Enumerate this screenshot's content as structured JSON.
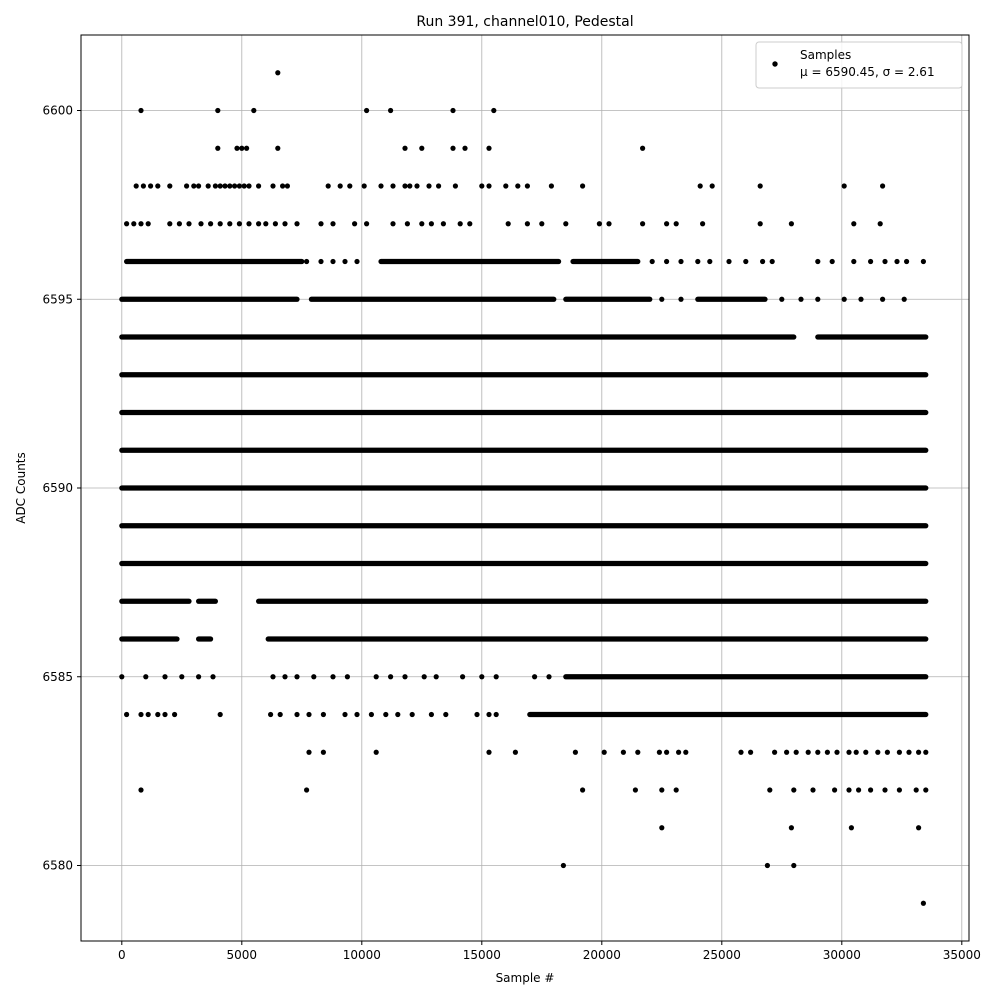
{
  "chart_data": {
    "type": "scatter",
    "title": "Run 391, channel010, Pedestal",
    "xlabel": "Sample #",
    "ylabel": "ADC Counts",
    "xlim": [
      -1700,
      35300
    ],
    "ylim": [
      6578,
      6602
    ],
    "xticks": [
      0,
      5000,
      10000,
      15000,
      20000,
      25000,
      30000,
      35000
    ],
    "xtick_labels": [
      "0",
      "5000",
      "10000",
      "15000",
      "20000",
      "25000",
      "30000",
      "35000"
    ],
    "yticks": [
      6580,
      6585,
      6590,
      6595,
      6600
    ],
    "ytick_labels": [
      "6580",
      "6585",
      "6590",
      "6595",
      "6600"
    ],
    "grid": true,
    "legend": {
      "placement": "top-right",
      "entries": [
        {
          "marker": "black-dot",
          "line1": "Samples",
          "line2": "μ = 6590.45, σ = 2.61"
        }
      ]
    },
    "series": [
      {
        "name": "Samples",
        "color": "#000000",
        "dense_levels": [
          {
            "y": 6586,
            "ranges": [
              [
                0,
                2300
              ],
              [
                3200,
                3700
              ],
              [
                6100,
                33500
              ]
            ]
          },
          {
            "y": 6587,
            "ranges": [
              [
                0,
                2800
              ],
              [
                3200,
                3900
              ],
              [
                5700,
                33500
              ]
            ]
          },
          {
            "y": 6588,
            "ranges": [
              [
                0,
                33500
              ]
            ]
          },
          {
            "y": 6589,
            "ranges": [
              [
                0,
                33500
              ]
            ]
          },
          {
            "y": 6590,
            "ranges": [
              [
                0,
                33500
              ]
            ]
          },
          {
            "y": 6591,
            "ranges": [
              [
                0,
                33500
              ]
            ]
          },
          {
            "y": 6592,
            "ranges": [
              [
                0,
                33500
              ]
            ]
          },
          {
            "y": 6593,
            "ranges": [
              [
                0,
                33500
              ]
            ]
          },
          {
            "y": 6594,
            "ranges": [
              [
                0,
                28000
              ],
              [
                29000,
                33500
              ]
            ]
          },
          {
            "y": 6595,
            "ranges": [
              [
                0,
                7300
              ],
              [
                7900,
                18000
              ],
              [
                18500,
                22000
              ],
              [
                24000,
                26800
              ]
            ]
          },
          {
            "y": 6596,
            "ranges": [
              [
                200,
                7500
              ],
              [
                10800,
                18200
              ],
              [
                18800,
                21500
              ]
            ]
          },
          {
            "y": 6584,
            "ranges": [
              [
                17000,
                33500
              ]
            ]
          },
          {
            "y": 6585,
            "ranges": [
              [
                18500,
                33500
              ]
            ]
          }
        ],
        "points": [
          [
            6500,
            6601
          ],
          [
            800,
            6600
          ],
          [
            4000,
            6600
          ],
          [
            5500,
            6600
          ],
          [
            10200,
            6600
          ],
          [
            11200,
            6600
          ],
          [
            13800,
            6600
          ],
          [
            15500,
            6600
          ],
          [
            4000,
            6599
          ],
          [
            4800,
            6599
          ],
          [
            5000,
            6599
          ],
          [
            5200,
            6599
          ],
          [
            6500,
            6599
          ],
          [
            11800,
            6599
          ],
          [
            12500,
            6599
          ],
          [
            13800,
            6599
          ],
          [
            14300,
            6599
          ],
          [
            15300,
            6599
          ],
          [
            21700,
            6599
          ],
          [
            600,
            6598
          ],
          [
            900,
            6598
          ],
          [
            1200,
            6598
          ],
          [
            1500,
            6598
          ],
          [
            2000,
            6598
          ],
          [
            2700,
            6598
          ],
          [
            3000,
            6598
          ],
          [
            3200,
            6598
          ],
          [
            3600,
            6598
          ],
          [
            3900,
            6598
          ],
          [
            4100,
            6598
          ],
          [
            4300,
            6598
          ],
          [
            4500,
            6598
          ],
          [
            4700,
            6598
          ],
          [
            4900,
            6598
          ],
          [
            5100,
            6598
          ],
          [
            5300,
            6598
          ],
          [
            5700,
            6598
          ],
          [
            6300,
            6598
          ],
          [
            6700,
            6598
          ],
          [
            6900,
            6598
          ],
          [
            8600,
            6598
          ],
          [
            9100,
            6598
          ],
          [
            9500,
            6598
          ],
          [
            10100,
            6598
          ],
          [
            10800,
            6598
          ],
          [
            11300,
            6598
          ],
          [
            11800,
            6598
          ],
          [
            12000,
            6598
          ],
          [
            12300,
            6598
          ],
          [
            12800,
            6598
          ],
          [
            13200,
            6598
          ],
          [
            13900,
            6598
          ],
          [
            15000,
            6598
          ],
          [
            15300,
            6598
          ],
          [
            16000,
            6598
          ],
          [
            16500,
            6598
          ],
          [
            16900,
            6598
          ],
          [
            17900,
            6598
          ],
          [
            19200,
            6598
          ],
          [
            24100,
            6598
          ],
          [
            24600,
            6598
          ],
          [
            26600,
            6598
          ],
          [
            30100,
            6598
          ],
          [
            31700,
            6598
          ],
          [
            200,
            6597
          ],
          [
            500,
            6597
          ],
          [
            800,
            6597
          ],
          [
            1100,
            6597
          ],
          [
            2000,
            6597
          ],
          [
            2400,
            6597
          ],
          [
            2800,
            6597
          ],
          [
            3300,
            6597
          ],
          [
            3700,
            6597
          ],
          [
            4100,
            6597
          ],
          [
            4500,
            6597
          ],
          [
            4900,
            6597
          ],
          [
            5300,
            6597
          ],
          [
            5700,
            6597
          ],
          [
            6000,
            6597
          ],
          [
            6400,
            6597
          ],
          [
            6800,
            6597
          ],
          [
            7300,
            6597
          ],
          [
            8300,
            6597
          ],
          [
            8800,
            6597
          ],
          [
            9700,
            6597
          ],
          [
            10200,
            6597
          ],
          [
            11300,
            6597
          ],
          [
            11900,
            6597
          ],
          [
            12500,
            6597
          ],
          [
            12900,
            6597
          ],
          [
            13400,
            6597
          ],
          [
            14100,
            6597
          ],
          [
            14500,
            6597
          ],
          [
            16100,
            6597
          ],
          [
            16900,
            6597
          ],
          [
            17500,
            6597
          ],
          [
            18500,
            6597
          ],
          [
            19900,
            6597
          ],
          [
            20300,
            6597
          ],
          [
            21700,
            6597
          ],
          [
            22700,
            6597
          ],
          [
            23100,
            6597
          ],
          [
            24200,
            6597
          ],
          [
            26600,
            6597
          ],
          [
            27900,
            6597
          ],
          [
            30500,
            6597
          ],
          [
            31600,
            6597
          ],
          [
            7700,
            6596
          ],
          [
            8300,
            6596
          ],
          [
            8800,
            6596
          ],
          [
            9300,
            6596
          ],
          [
            9800,
            6596
          ],
          [
            22100,
            6596
          ],
          [
            22700,
            6596
          ],
          [
            23300,
            6596
          ],
          [
            24000,
            6596
          ],
          [
            24500,
            6596
          ],
          [
            25300,
            6596
          ],
          [
            26000,
            6596
          ],
          [
            26700,
            6596
          ],
          [
            27100,
            6596
          ],
          [
            29000,
            6596
          ],
          [
            29600,
            6596
          ],
          [
            30500,
            6596
          ],
          [
            31200,
            6596
          ],
          [
            31800,
            6596
          ],
          [
            32300,
            6596
          ],
          [
            32700,
            6596
          ],
          [
            33400,
            6596
          ],
          [
            22500,
            6595
          ],
          [
            23300,
            6595
          ],
          [
            27500,
            6595
          ],
          [
            28300,
            6595
          ],
          [
            29000,
            6595
          ],
          [
            30100,
            6595
          ],
          [
            30800,
            6595
          ],
          [
            31700,
            6595
          ],
          [
            32600,
            6595
          ],
          [
            0,
            6585
          ],
          [
            1000,
            6585
          ],
          [
            1800,
            6585
          ],
          [
            2500,
            6585
          ],
          [
            3200,
            6585
          ],
          [
            3800,
            6585
          ],
          [
            6300,
            6585
          ],
          [
            6800,
            6585
          ],
          [
            7300,
            6585
          ],
          [
            8000,
            6585
          ],
          [
            8800,
            6585
          ],
          [
            9400,
            6585
          ],
          [
            10600,
            6585
          ],
          [
            11200,
            6585
          ],
          [
            11800,
            6585
          ],
          [
            12600,
            6585
          ],
          [
            13100,
            6585
          ],
          [
            14200,
            6585
          ],
          [
            15000,
            6585
          ],
          [
            15600,
            6585
          ],
          [
            17200,
            6585
          ],
          [
            17800,
            6585
          ],
          [
            200,
            6584
          ],
          [
            800,
            6584
          ],
          [
            1100,
            6584
          ],
          [
            1500,
            6584
          ],
          [
            1800,
            6584
          ],
          [
            2200,
            6584
          ],
          [
            4100,
            6584
          ],
          [
            6200,
            6584
          ],
          [
            6600,
            6584
          ],
          [
            7300,
            6584
          ],
          [
            7800,
            6584
          ],
          [
            8400,
            6584
          ],
          [
            9300,
            6584
          ],
          [
            9800,
            6584
          ],
          [
            10400,
            6584
          ],
          [
            11000,
            6584
          ],
          [
            11500,
            6584
          ],
          [
            12100,
            6584
          ],
          [
            12900,
            6584
          ],
          [
            13500,
            6584
          ],
          [
            14800,
            6584
          ],
          [
            15300,
            6584
          ],
          [
            15600,
            6584
          ],
          [
            7800,
            6583
          ],
          [
            8400,
            6583
          ],
          [
            10600,
            6583
          ],
          [
            15300,
            6583
          ],
          [
            16400,
            6583
          ],
          [
            18900,
            6583
          ],
          [
            20100,
            6583
          ],
          [
            20900,
            6583
          ],
          [
            21500,
            6583
          ],
          [
            22400,
            6583
          ],
          [
            22700,
            6583
          ],
          [
            23200,
            6583
          ],
          [
            23500,
            6583
          ],
          [
            25800,
            6583
          ],
          [
            26200,
            6583
          ],
          [
            27200,
            6583
          ],
          [
            27700,
            6583
          ],
          [
            28100,
            6583
          ],
          [
            28600,
            6583
          ],
          [
            29000,
            6583
          ],
          [
            29400,
            6583
          ],
          [
            29800,
            6583
          ],
          [
            30300,
            6583
          ],
          [
            30600,
            6583
          ],
          [
            31000,
            6583
          ],
          [
            31500,
            6583
          ],
          [
            31900,
            6583
          ],
          [
            32400,
            6583
          ],
          [
            32800,
            6583
          ],
          [
            33200,
            6583
          ],
          [
            33500,
            6583
          ],
          [
            800,
            6582
          ],
          [
            7700,
            6582
          ],
          [
            19200,
            6582
          ],
          [
            21400,
            6582
          ],
          [
            22500,
            6582
          ],
          [
            23100,
            6582
          ],
          [
            27000,
            6582
          ],
          [
            28000,
            6582
          ],
          [
            28800,
            6582
          ],
          [
            29700,
            6582
          ],
          [
            30300,
            6582
          ],
          [
            30700,
            6582
          ],
          [
            31200,
            6582
          ],
          [
            31800,
            6582
          ],
          [
            32400,
            6582
          ],
          [
            33100,
            6582
          ],
          [
            33500,
            6582
          ],
          [
            22500,
            6581
          ],
          [
            27900,
            6581
          ],
          [
            30400,
            6581
          ],
          [
            33200,
            6581
          ],
          [
            18400,
            6580
          ],
          [
            26900,
            6580
          ],
          [
            28000,
            6580
          ],
          [
            33400,
            6579
          ]
        ]
      }
    ]
  }
}
